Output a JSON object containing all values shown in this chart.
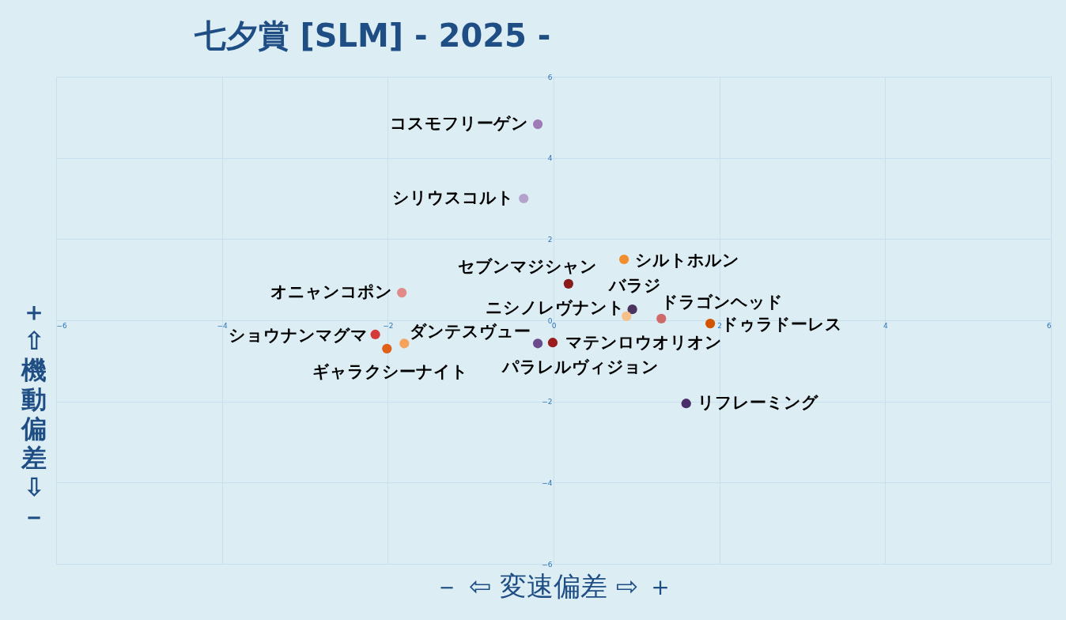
{
  "chart_data": {
    "type": "scatter",
    "title": "七夕賞 [SLM]  - 2025 -",
    "xlabel": "－  ⇦      変速偏差      ⇨  ＋",
    "ylabel": "＋ ⇧ 機動偏差 ⇩ －",
    "xlim": [
      -6,
      6
    ],
    "ylim": [
      -6,
      6
    ],
    "xticks": [
      -6,
      -4,
      -2,
      0,
      2,
      4,
      6
    ],
    "yticks": [
      -6,
      -4,
      -2,
      0,
      2,
      4,
      6
    ],
    "grid": true,
    "marker": "circle",
    "series": [
      {
        "name": "コスモフリーゲン",
        "color": "#9e7bb5",
        "x": [
          -0.19
        ],
        "values": [
          4.83
        ]
      },
      {
        "name": "シリウスコルト",
        "color": "#b3a2cc",
        "x": [
          -0.36
        ],
        "values": [
          3.0
        ]
      },
      {
        "name": "シルトホルン",
        "color": "#f28e2b",
        "x": [
          0.85
        ],
        "values": [
          1.5
        ]
      },
      {
        "name": "セブンマジシャン",
        "color": "#8b1a1a",
        "x": [
          0.18
        ],
        "values": [
          0.9
        ]
      },
      {
        "name": "オニャンコポン",
        "color": "#e08a8a",
        "x": [
          -1.83
        ],
        "values": [
          0.68
        ]
      },
      {
        "name": "バラジ",
        "color": "#4a3560",
        "x": [
          0.95
        ],
        "values": [
          0.27
        ]
      },
      {
        "name": "ニシノレヴナント",
        "color": "#f5c08a",
        "x": [
          0.88
        ],
        "values": [
          0.1
        ]
      },
      {
        "name": "ドラゴンヘッド",
        "color": "#d06a6a",
        "x": [
          1.3
        ],
        "values": [
          0.04
        ]
      },
      {
        "name": "ドゥラドーレス",
        "color": "#d35400",
        "x": [
          1.89
        ],
        "values": [
          -0.08
        ]
      },
      {
        "name": "ショウナンマグマ",
        "color": "#d43a3a",
        "x": [
          -2.15
        ],
        "values": [
          -0.35
        ]
      },
      {
        "name": "ダンテスヴュー",
        "color": "#f5a25d",
        "x": [
          -1.8
        ],
        "values": [
          -0.57
        ]
      },
      {
        "name": "ギャラクシーナイト",
        "color": "#e0601a",
        "x": [
          -2.01
        ],
        "values": [
          -0.7
        ]
      },
      {
        "name": "パラレルヴィジョン",
        "color": "#6a4a8a",
        "x": [
          -0.19
        ],
        "values": [
          -0.57
        ]
      },
      {
        "name": "マテンロウオリオン",
        "color": "#9b1c1c",
        "x": [
          -0.01
        ],
        "values": [
          -0.55
        ]
      },
      {
        "name": "リフレーミング",
        "color": "#4a2e6a",
        "x": [
          1.6
        ],
        "values": [
          -2.05
        ]
      }
    ]
  }
}
